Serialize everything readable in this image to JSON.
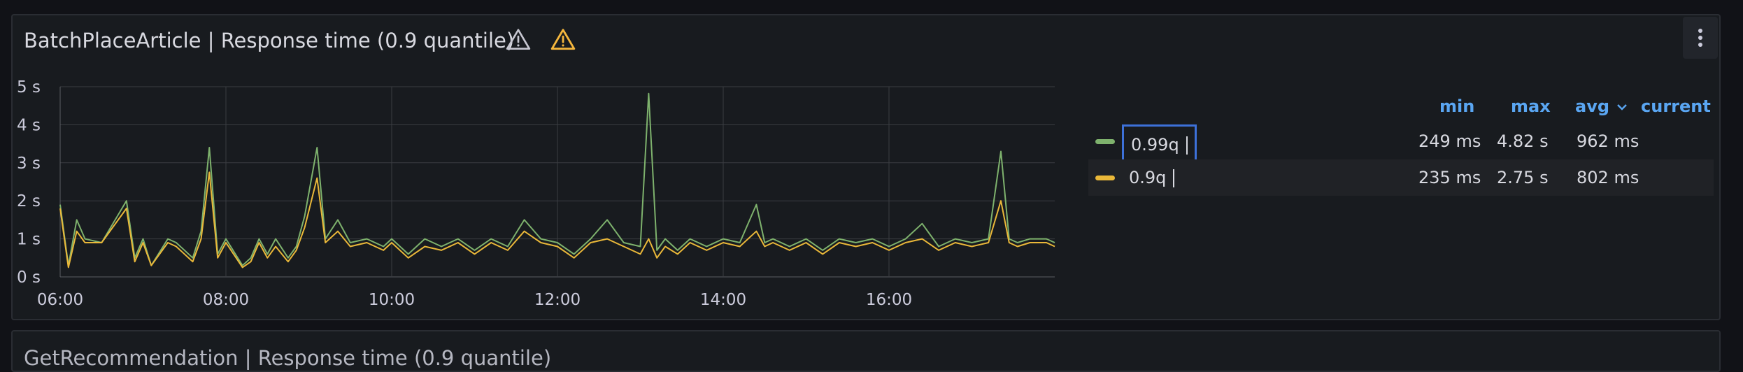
{
  "panel": {
    "title": "BatchPlaceArticle | Response time (0.9 quantile)",
    "icons": [
      "warning-outline-icon",
      "warning-icon",
      "menu-icon"
    ]
  },
  "next_panel": {
    "title": "GetRecommendation | Response time (0.9 quantile)"
  },
  "legend": {
    "headers": {
      "min": "min",
      "max": "max",
      "avg": "avg",
      "current": "current"
    },
    "sort_indicator": "chevron-down-icon",
    "rows": [
      {
        "name": "0.99q",
        "min": "249 ms",
        "max": "4.82 s",
        "avg": "962 ms",
        "current": "",
        "color": "#7eb26d"
      },
      {
        "name": "0.9q",
        "min": "235 ms",
        "max": "2.75 s",
        "avg": "802 ms",
        "current": "",
        "color": "#eab839"
      }
    ]
  },
  "chart_data": {
    "type": "line",
    "title": "BatchPlaceArticle | Response time (0.9 quantile)",
    "xlabel": "",
    "ylabel": "",
    "x_ticks": [
      "06:00",
      "08:00",
      "10:00",
      "12:00",
      "14:00",
      "16:00"
    ],
    "y_ticks": [
      "0 s",
      "1 s",
      "2 s",
      "3 s",
      "4 s",
      "5 s"
    ],
    "ylim": [
      0,
      5
    ],
    "xlim_hours": [
      6.0,
      18.0
    ],
    "grid": true,
    "legend_position": "right",
    "series": [
      {
        "name": "0.99q",
        "color": "#7eb26d",
        "x": [
          6.0,
          6.1,
          6.2,
          6.3,
          6.5,
          6.8,
          6.9,
          7.0,
          7.1,
          7.3,
          7.4,
          7.6,
          7.7,
          7.8,
          7.9,
          8.0,
          8.2,
          8.3,
          8.4,
          8.5,
          8.6,
          8.75,
          8.85,
          8.95,
          9.1,
          9.2,
          9.35,
          9.5,
          9.7,
          9.9,
          10.0,
          10.2,
          10.4,
          10.6,
          10.8,
          11.0,
          11.2,
          11.4,
          11.6,
          11.8,
          12.0,
          12.2,
          12.4,
          12.6,
          12.8,
          13.0,
          13.1,
          13.2,
          13.3,
          13.45,
          13.6,
          13.8,
          14.0,
          14.2,
          14.4,
          14.5,
          14.6,
          14.8,
          15.0,
          15.2,
          15.4,
          15.6,
          15.8,
          16.0,
          16.2,
          16.4,
          16.6,
          16.8,
          17.0,
          17.2,
          17.35,
          17.45,
          17.55,
          17.7,
          17.9,
          18.0
        ],
        "y": [
          1.9,
          0.3,
          1.5,
          1.0,
          0.9,
          2.0,
          0.5,
          1.0,
          0.3,
          1.0,
          0.9,
          0.5,
          1.2,
          3.4,
          0.6,
          1.0,
          0.3,
          0.5,
          1.0,
          0.6,
          1.0,
          0.5,
          0.8,
          1.6,
          3.4,
          1.0,
          1.5,
          0.9,
          1.0,
          0.8,
          1.0,
          0.6,
          1.0,
          0.8,
          1.0,
          0.7,
          1.0,
          0.8,
          1.5,
          1.0,
          0.9,
          0.6,
          1.0,
          1.5,
          0.9,
          0.8,
          4.82,
          0.7,
          1.0,
          0.7,
          1.0,
          0.8,
          1.0,
          0.9,
          1.9,
          0.9,
          1.0,
          0.8,
          1.0,
          0.7,
          1.0,
          0.9,
          1.0,
          0.8,
          1.0,
          1.4,
          0.8,
          1.0,
          0.9,
          1.0,
          3.3,
          1.0,
          0.9,
          1.0,
          1.0,
          0.9
        ]
      },
      {
        "name": "0.9q",
        "color": "#eab839",
        "x": [
          6.0,
          6.1,
          6.2,
          6.3,
          6.5,
          6.8,
          6.9,
          7.0,
          7.1,
          7.3,
          7.4,
          7.6,
          7.7,
          7.8,
          7.9,
          8.0,
          8.2,
          8.3,
          8.4,
          8.5,
          8.6,
          8.75,
          8.85,
          8.95,
          9.1,
          9.2,
          9.35,
          9.5,
          9.7,
          9.9,
          10.0,
          10.2,
          10.4,
          10.6,
          10.8,
          11.0,
          11.2,
          11.4,
          11.6,
          11.8,
          12.0,
          12.2,
          12.4,
          12.6,
          12.8,
          13.0,
          13.1,
          13.2,
          13.3,
          13.45,
          13.6,
          13.8,
          14.0,
          14.2,
          14.4,
          14.5,
          14.6,
          14.8,
          15.0,
          15.2,
          15.4,
          15.6,
          15.8,
          16.0,
          16.2,
          16.4,
          16.6,
          16.8,
          17.0,
          17.2,
          17.35,
          17.45,
          17.55,
          17.7,
          17.9,
          18.0
        ],
        "y": [
          1.8,
          0.25,
          1.2,
          0.9,
          0.9,
          1.8,
          0.4,
          0.9,
          0.3,
          0.9,
          0.8,
          0.4,
          1.0,
          2.75,
          0.5,
          0.9,
          0.25,
          0.4,
          0.9,
          0.5,
          0.8,
          0.4,
          0.7,
          1.3,
          2.6,
          0.9,
          1.2,
          0.8,
          0.9,
          0.7,
          0.9,
          0.5,
          0.8,
          0.7,
          0.9,
          0.6,
          0.9,
          0.7,
          1.2,
          0.9,
          0.8,
          0.5,
          0.9,
          1.0,
          0.8,
          0.6,
          1.0,
          0.5,
          0.8,
          0.6,
          0.9,
          0.7,
          0.9,
          0.8,
          1.2,
          0.8,
          0.9,
          0.7,
          0.9,
          0.6,
          0.9,
          0.8,
          0.9,
          0.7,
          0.9,
          1.0,
          0.7,
          0.9,
          0.8,
          0.9,
          2.0,
          0.9,
          0.8,
          0.9,
          0.9,
          0.8
        ]
      }
    ]
  }
}
